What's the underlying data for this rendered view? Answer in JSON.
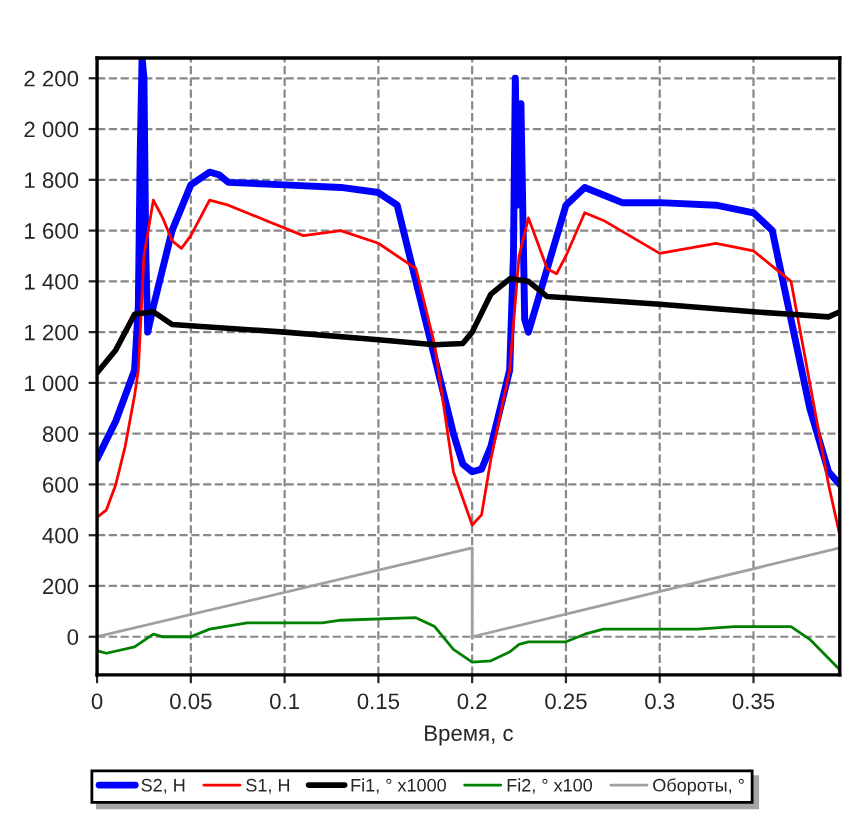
{
  "chart_data": {
    "type": "line",
    "xlabel": "Время, с",
    "xlim": [
      0,
      0.396
    ],
    "ylim": [
      -150,
      2280
    ],
    "xticks": [
      0,
      0.05,
      0.1,
      0.15,
      0.2,
      0.25,
      0.3,
      0.35
    ],
    "yticks": [
      0,
      200,
      400,
      600,
      800,
      {
        "value": 1000,
        "label": "1 000"
      },
      {
        "value": 1200,
        "label": "1 200"
      },
      {
        "value": 1400,
        "label": "1 400"
      },
      {
        "value": 1600,
        "label": "1 600"
      },
      {
        "value": 1800,
        "label": "1 800"
      },
      {
        "value": 2000,
        "label": "2 000"
      },
      {
        "value": 2200,
        "label": "2 200"
      }
    ],
    "grid": true,
    "legend": "bottom",
    "line_style": "solid",
    "series": [
      {
        "name": "S2, Н",
        "color": "#0000ff",
        "x": [
          0,
          0.01,
          0.02,
          0.022,
          0.023,
          0.024,
          0.025,
          0.026,
          0.027,
          0.03,
          0.04,
          0.05,
          0.06,
          0.065,
          0.07,
          0.1,
          0.13,
          0.15,
          0.16,
          0.17,
          0.18,
          0.19,
          0.195,
          0.2,
          0.205,
          0.21,
          0.22,
          0.222,
          0.223,
          0.224,
          0.226,
          0.228,
          0.23,
          0.24,
          0.25,
          0.26,
          0.27,
          0.28,
          0.3,
          0.33,
          0.35,
          0.36,
          0.37,
          0.38,
          0.39,
          0.396
        ],
        "values": [
          700,
          850,
          1050,
          1300,
          1900,
          2280,
          2200,
          1500,
          1200,
          1300,
          1600,
          1780,
          1830,
          1820,
          1790,
          1780,
          1770,
          1750,
          1700,
          1400,
          1100,
          800,
          680,
          650,
          660,
          750,
          1050,
          1500,
          2200,
          1700,
          2100,
          1250,
          1200,
          1450,
          1700,
          1770,
          1740,
          1710,
          1710,
          1700,
          1670,
          1600,
          1250,
          900,
          650,
          600
        ]
      },
      {
        "name": "S1, Н",
        "color": "#ff0000",
        "x": [
          0,
          0.005,
          0.01,
          0.015,
          0.02,
          0.022,
          0.025,
          0.03,
          0.035,
          0.04,
          0.045,
          0.05,
          0.06,
          0.07,
          0.09,
          0.11,
          0.13,
          0.15,
          0.17,
          0.18,
          0.19,
          0.2,
          0.205,
          0.21,
          0.22,
          0.225,
          0.23,
          0.235,
          0.24,
          0.245,
          0.25,
          0.26,
          0.27,
          0.3,
          0.33,
          0.35,
          0.36,
          0.37,
          0.38,
          0.39,
          0.396
        ],
        "values": [
          470,
          500,
          600,
          750,
          950,
          1050,
          1500,
          1720,
          1650,
          1560,
          1530,
          1580,
          1720,
          1700,
          1640,
          1580,
          1600,
          1550,
          1450,
          1150,
          650,
          440,
          480,
          700,
          1050,
          1500,
          1650,
          1550,
          1450,
          1430,
          1500,
          1670,
          1640,
          1510,
          1550,
          1520,
          1460,
          1400,
          1000,
          600,
          400
        ]
      },
      {
        "name": "Fi1, ° x1000",
        "color": "#000000",
        "x": [
          0,
          0.01,
          0.02,
          0.03,
          0.04,
          0.1,
          0.15,
          0.18,
          0.195,
          0.2,
          0.21,
          0.22,
          0.23,
          0.24,
          0.3,
          0.35,
          0.37,
          0.39,
          0.396
        ],
        "values": [
          1040,
          1130,
          1270,
          1280,
          1230,
          1200,
          1170,
          1150,
          1155,
          1200,
          1350,
          1410,
          1400,
          1340,
          1310,
          1280,
          1270,
          1260,
          1280
        ]
      },
      {
        "name": "Fi2, ° x100",
        "color": "#008000",
        "x": [
          0,
          0.005,
          0.02,
          0.03,
          0.035,
          0.05,
          0.06,
          0.08,
          0.12,
          0.13,
          0.17,
          0.18,
          0.19,
          0.2,
          0.21,
          0.22,
          0.225,
          0.23,
          0.25,
          0.26,
          0.27,
          0.3,
          0.32,
          0.34,
          0.37,
          0.38,
          0.396
        ],
        "values": [
          -55,
          -65,
          -40,
          10,
          0,
          0,
          30,
          55,
          55,
          65,
          75,
          40,
          -50,
          -100,
          -95,
          -60,
          -30,
          -20,
          -20,
          10,
          30,
          30,
          30,
          40,
          40,
          -10,
          -130
        ]
      },
      {
        "name": "Обороты, °",
        "color": "#a0a0a0",
        "x": [
          0,
          0.2,
          0.2,
          0.396
        ],
        "values": [
          0,
          350,
          0,
          350
        ]
      }
    ]
  }
}
